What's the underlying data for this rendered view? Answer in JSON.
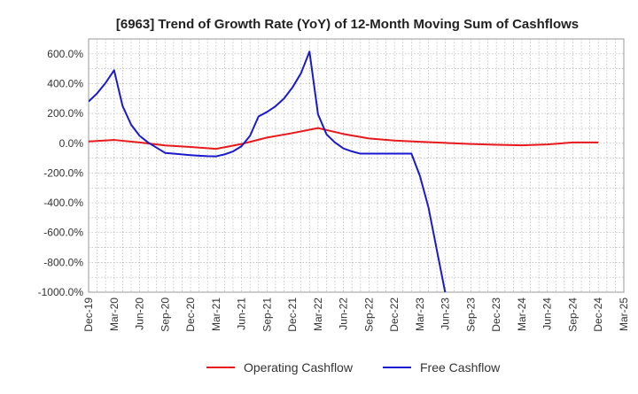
{
  "chart_data": {
    "type": "line",
    "title": "[6963]  Trend of Growth Rate (YoY) of 12-Month Moving Sum of Cashflows",
    "xlabel": "",
    "ylabel": "",
    "ylim": [
      -1000,
      700
    ],
    "yticks": [
      600,
      400,
      200,
      0,
      -200,
      -400,
      -600,
      -800,
      -1000
    ],
    "ytick_labels": [
      "600.0%",
      "400.0%",
      "200.0%",
      "0.0%",
      "-200.0%",
      "-400.0%",
      "-600.0%",
      "-800.0%",
      "-1000.0%"
    ],
    "x_tick_labels": [
      "Dec-19",
      "Mar-20",
      "Jun-20",
      "Sep-20",
      "Dec-20",
      "Mar-21",
      "Jun-21",
      "Sep-21",
      "Dec-21",
      "Mar-22",
      "Jun-22",
      "Sep-22",
      "Dec-22",
      "Mar-23",
      "Jun-23",
      "Sep-23",
      "Dec-23",
      "Mar-24",
      "Jun-24",
      "Sep-24",
      "Dec-24",
      "Mar-25"
    ],
    "grid": true,
    "legend_position": "bottom-center",
    "series": [
      {
        "name": "Operating Cashflow",
        "color": "#e8191c",
        "points": [
          [
            0,
            12
          ],
          [
            3,
            22
          ],
          [
            6,
            5
          ],
          [
            9,
            -15
          ],
          [
            12,
            -25
          ],
          [
            15,
            -38
          ],
          [
            18,
            -5
          ],
          [
            21,
            38
          ],
          [
            24,
            68
          ],
          [
            27,
            102
          ],
          [
            30,
            62
          ],
          [
            33,
            32
          ],
          [
            36,
            18
          ],
          [
            39,
            10
          ],
          [
            42,
            2
          ],
          [
            45,
            -5
          ],
          [
            48,
            -10
          ],
          [
            51,
            -14
          ],
          [
            54,
            -8
          ],
          [
            57,
            5
          ],
          [
            60,
            5
          ]
        ]
      },
      {
        "name": "Free Cashflow",
        "color": "#1a1acc",
        "points": [
          [
            0,
            280
          ],
          [
            1,
            335
          ],
          [
            2,
            405
          ],
          [
            3,
            490
          ],
          [
            4,
            250
          ],
          [
            5,
            125
          ],
          [
            6,
            50
          ],
          [
            7,
            5
          ],
          [
            8,
            -30
          ],
          [
            9,
            -65
          ],
          [
            10,
            -70
          ],
          [
            11,
            -75
          ],
          [
            12,
            -80
          ],
          [
            13,
            -84
          ],
          [
            14,
            -87
          ],
          [
            15,
            -88
          ],
          [
            16,
            -75
          ],
          [
            17,
            -55
          ],
          [
            18,
            -20
          ],
          [
            19,
            50
          ],
          [
            20,
            180
          ],
          [
            21,
            210
          ],
          [
            22,
            248
          ],
          [
            23,
            300
          ],
          [
            24,
            375
          ],
          [
            25,
            470
          ],
          [
            26,
            615
          ],
          [
            27,
            195
          ],
          [
            28,
            60
          ],
          [
            29,
            5
          ],
          [
            30,
            -35
          ],
          [
            31,
            -55
          ],
          [
            32,
            -70
          ],
          [
            33,
            -70
          ],
          [
            34,
            -70
          ],
          [
            35,
            -70
          ],
          [
            36,
            -70
          ],
          [
            37,
            -70
          ],
          [
            38,
            -70
          ],
          [
            39,
            -220
          ],
          [
            40,
            -430
          ],
          [
            41,
            -720
          ],
          [
            42,
            -1010
          ]
        ]
      }
    ]
  },
  "legend": {
    "operating_label": "Operating Cashflow",
    "free_label": "Free Cashflow"
  }
}
